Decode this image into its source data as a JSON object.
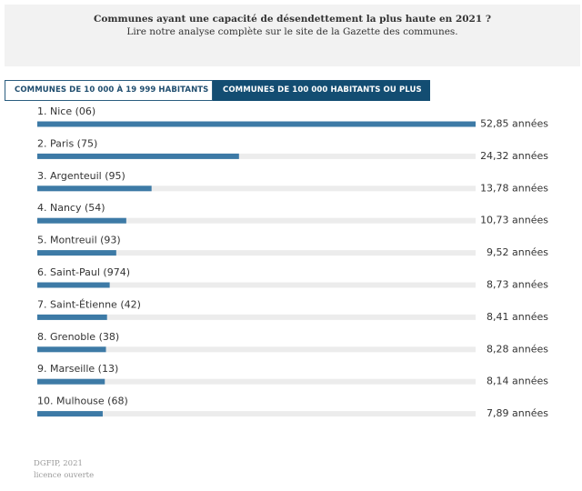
{
  "header": {
    "title": "Communes ayant une capacité de désendettement la plus haute en 2021 ?",
    "subtitle": "Lire notre analyse complète sur le site de la Gazette des communes."
  },
  "tabs": [
    {
      "label": "COMMUNES DE 10 000 À 19 999 HABITANTS",
      "selected": false
    },
    {
      "label": "COMMUNES DE 100 000 HABITANTS OU PLUS",
      "selected": true
    }
  ],
  "footer": {
    "source": "DGFIP, 2021",
    "license": "licence ouverte"
  },
  "colors": {
    "bar": "#3d7aa6",
    "track": "#ececec",
    "active_tab": "#134d72"
  },
  "chart_data": {
    "type": "bar",
    "orientation": "horizontal",
    "categories": [
      "1. Nice (06)",
      "2. Paris (75)",
      "3. Argenteuil (95)",
      "4. Nancy (54)",
      "5. Montreuil (93)",
      "6. Saint-Paul (974)",
      "7. Saint-Étienne (42)",
      "8. Grenoble (38)",
      "9. Marseille (13)",
      "10. Mulhouse (68)"
    ],
    "values": [
      52.85,
      24.32,
      13.78,
      10.73,
      9.52,
      8.73,
      8.41,
      8.28,
      8.14,
      7.89
    ],
    "value_labels": [
      "52,85 années",
      "24,32 années",
      "13,78 années",
      "10,73 années",
      "9,52 années",
      "8,73 années",
      "8,41 années",
      "8,28 années",
      "8,14 années",
      "7,89 années"
    ],
    "xlim": [
      0,
      52.85
    ],
    "grid": false
  }
}
